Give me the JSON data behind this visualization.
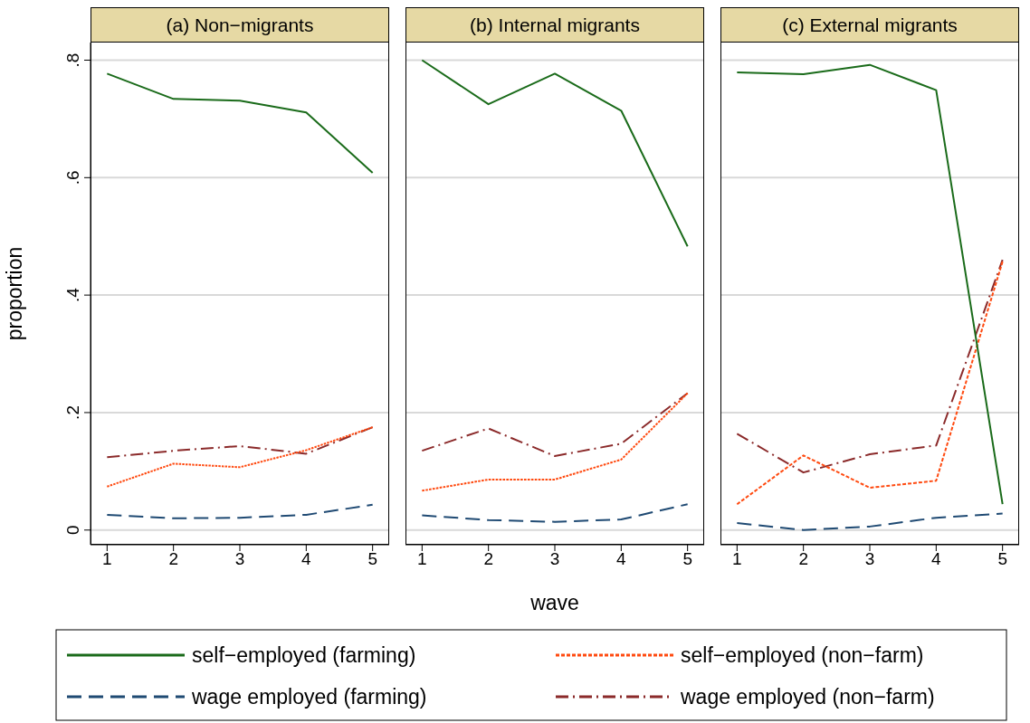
{
  "chart_data": [
    {
      "type": "line",
      "title": "(a) Non−migrants",
      "ylabel": "proportion",
      "xlim": [
        0.75,
        5.25
      ],
      "xticks": [
        1,
        2,
        3,
        4,
        5
      ],
      "ylim": [
        -0.025,
        0.83
      ],
      "yticks": [
        {
          "value": 0,
          "label": "0"
        },
        {
          "value": 0.2,
          "label": ".2"
        },
        {
          "value": 0.4,
          "label": ".4"
        },
        {
          "value": 0.6,
          "label": ".6"
        },
        {
          "value": 0.8,
          "label": ".8"
        }
      ],
      "grid": "y",
      "legend": "bottom",
      "x": [
        1,
        2,
        3,
        4,
        5
      ],
      "series": [
        {
          "name": "self−employed (farming)",
          "color": "#1a6b1a",
          "line_style": "solid",
          "values": [
            0.777,
            0.734,
            0.731,
            0.711,
            0.608
          ]
        },
        {
          "name": "self−employed (non−farm)",
          "color": "#ff4a10",
          "line_style": "dotted",
          "values": [
            0.074,
            0.113,
            0.107,
            0.136,
            0.175
          ]
        },
        {
          "name": "wage employed (farming)",
          "color": "#1f4a73",
          "line_style": "dashed",
          "values": [
            0.026,
            0.02,
            0.021,
            0.026,
            0.043
          ]
        },
        {
          "name": "wage employed (non−farm)",
          "color": "#8b2a2a",
          "line_style": "dashdot",
          "values": [
            0.124,
            0.135,
            0.143,
            0.13,
            0.175
          ]
        }
      ]
    },
    {
      "type": "line",
      "title": "(b) Internal migrants",
      "xlabel": "wave",
      "xlim": [
        0.75,
        5.25
      ],
      "xticks": [
        1,
        2,
        3,
        4,
        5
      ],
      "ylim": [
        -0.025,
        0.83
      ],
      "yticks": [
        0,
        0.2,
        0.4,
        0.6,
        0.8
      ],
      "grid": "y",
      "tick_labels": "x",
      "x": [
        1,
        2,
        3,
        4,
        5
      ],
      "series": [
        {
          "color": "#1a6b1a",
          "line_style": "solid",
          "values": [
            0.8,
            0.725,
            0.777,
            0.714,
            0.483
          ]
        },
        {
          "color": "#ff4a10",
          "line_style": "dotted",
          "values": [
            0.067,
            0.086,
            0.086,
            0.12,
            0.233
          ]
        },
        {
          "color": "#1f4a73",
          "line_style": "dashed",
          "values": [
            0.025,
            0.017,
            0.014,
            0.018,
            0.044
          ]
        },
        {
          "color": "#8b2a2a",
          "line_style": "dashdot",
          "values": [
            0.135,
            0.173,
            0.126,
            0.147,
            0.233
          ]
        }
      ]
    },
    {
      "type": "line",
      "title": "(c) External migrants",
      "xlim": [
        0.75,
        5.25
      ],
      "xticks": [
        1,
        2,
        3,
        4,
        5
      ],
      "ylim": [
        -0.025,
        0.83
      ],
      "yticks": [
        0,
        0.2,
        0.4,
        0.6,
        0.8
      ],
      "grid": "y",
      "tick_labels": "x",
      "x": [
        1,
        2,
        3,
        4,
        5
      ],
      "series": [
        {
          "color": "#1a6b1a",
          "line_style": "solid",
          "values": [
            0.779,
            0.776,
            0.792,
            0.749,
            0.044
          ]
        },
        {
          "color": "#ff4a10",
          "line_style": "dotted",
          "values": [
            0.044,
            0.127,
            0.072,
            0.084,
            0.457
          ]
        },
        {
          "color": "#1f4a73",
          "line_style": "dashed",
          "values": [
            0.012,
            0.0,
            0.006,
            0.021,
            0.028
          ]
        },
        {
          "color": "#8b2a2a",
          "line_style": "dashdot",
          "values": [
            0.164,
            0.098,
            0.129,
            0.144,
            0.46
          ]
        }
      ]
    }
  ]
}
